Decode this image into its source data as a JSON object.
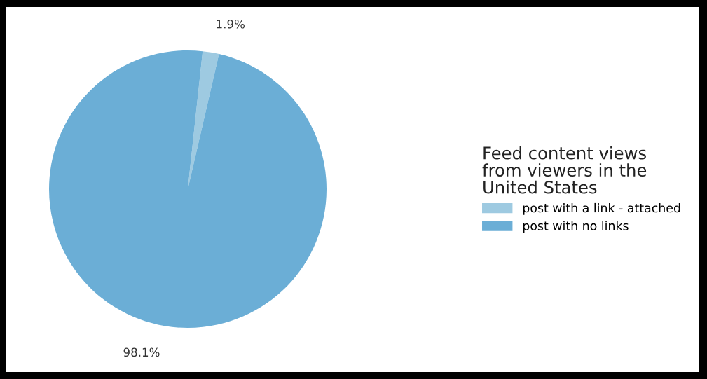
{
  "chart_data": {
    "type": "pie",
    "categories": [
      "post with a link - attached",
      "post with no links"
    ],
    "values": [
      1.9,
      98.1
    ],
    "colors": [
      "#9ecae1",
      "#6baed6"
    ],
    "value_labels": [
      "1.9%",
      "98.1%"
    ],
    "legend_title": "Feed content views\nfrom viewers in the\nUnited States",
    "legend": "right"
  }
}
